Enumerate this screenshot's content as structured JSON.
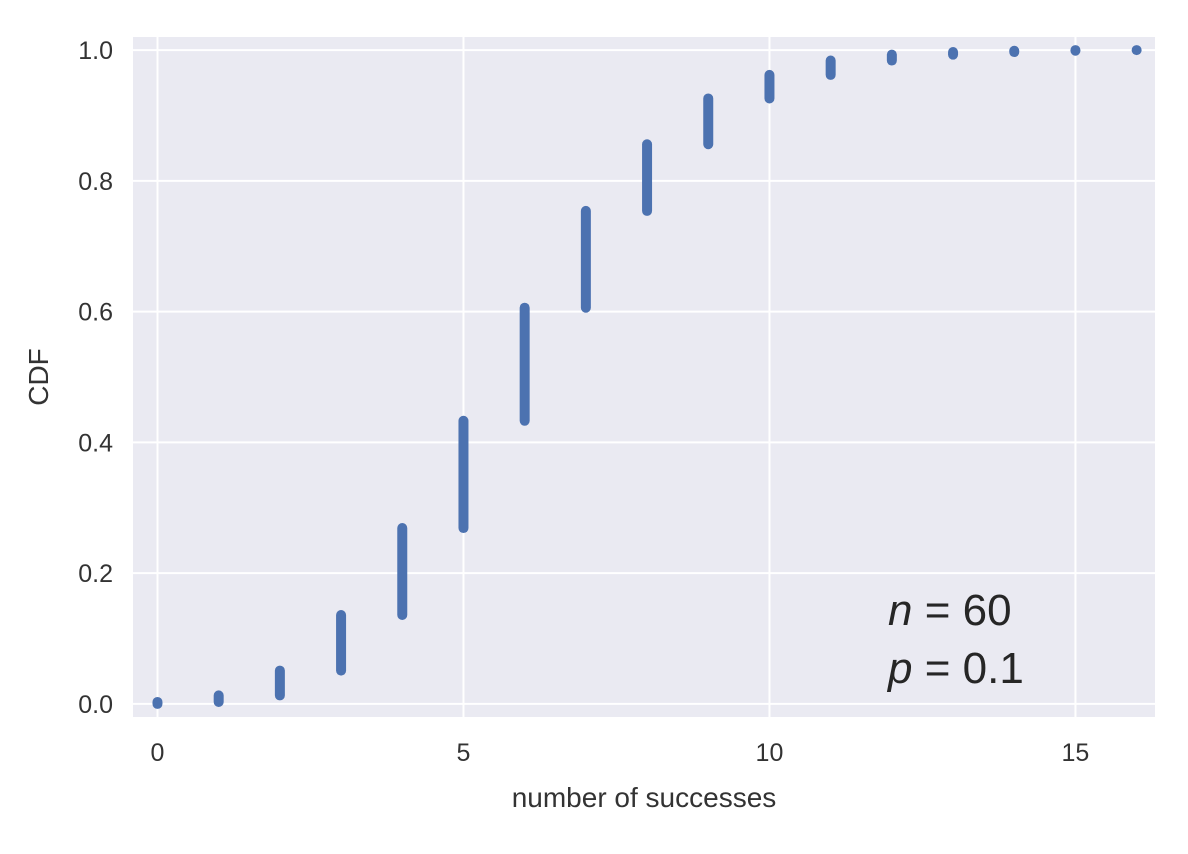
{
  "chart_data": {
    "type": "scatter",
    "title": "",
    "xlabel": "number of successes",
    "ylabel": "CDF",
    "xlim": [
      -0.4,
      16.3
    ],
    "ylim": [
      -0.02,
      1.02
    ],
    "xticks": [
      0,
      5,
      10,
      15
    ],
    "xtick_labels": [
      "0",
      "5",
      "10",
      "15"
    ],
    "yticks": [
      0.0,
      0.2,
      0.4,
      0.6,
      0.8,
      1.0
    ],
    "ytick_labels": [
      "0.0",
      "0.2",
      "0.4",
      "0.6",
      "0.8",
      "1.0"
    ],
    "grid": true,
    "series": [
      {
        "points": [
          {
            "x": 0,
            "y_min": 0.0,
            "y_max": 0.003
          },
          {
            "x": 1,
            "y_min": 0.003,
            "y_max": 0.013
          },
          {
            "x": 2,
            "y_min": 0.013,
            "y_max": 0.051
          },
          {
            "x": 3,
            "y_min": 0.051,
            "y_max": 0.136
          },
          {
            "x": 4,
            "y_min": 0.136,
            "y_max": 0.269
          },
          {
            "x": 5,
            "y_min": 0.269,
            "y_max": 0.433
          },
          {
            "x": 6,
            "y_min": 0.433,
            "y_max": 0.606
          },
          {
            "x": 7,
            "y_min": 0.606,
            "y_max": 0.754
          },
          {
            "x": 8,
            "y_min": 0.754,
            "y_max": 0.856
          },
          {
            "x": 9,
            "y_min": 0.856,
            "y_max": 0.926
          },
          {
            "x": 10,
            "y_min": 0.926,
            "y_max": 0.962
          },
          {
            "x": 11,
            "y_min": 0.962,
            "y_max": 0.984
          },
          {
            "x": 12,
            "y_min": 0.984,
            "y_max": 0.993
          },
          {
            "x": 13,
            "y_min": 0.993,
            "y_max": 0.997
          },
          {
            "x": 14,
            "y_min": 0.997,
            "y_max": 0.999
          },
          {
            "x": 15,
            "y_min": 0.999,
            "y_max": 1.0
          },
          {
            "x": 16,
            "y_min": 1.0,
            "y_max": 1.0
          }
        ]
      }
    ],
    "annotation": {
      "n_var": "n",
      "n_rest": " = 60",
      "p_var": "p",
      "p_rest": " = 0.1",
      "placement": "bottom-right"
    },
    "colors": {
      "background": "#eaeaf2",
      "grid": "#ffffff",
      "marker": "#4c72b0",
      "text": "#333333"
    }
  }
}
